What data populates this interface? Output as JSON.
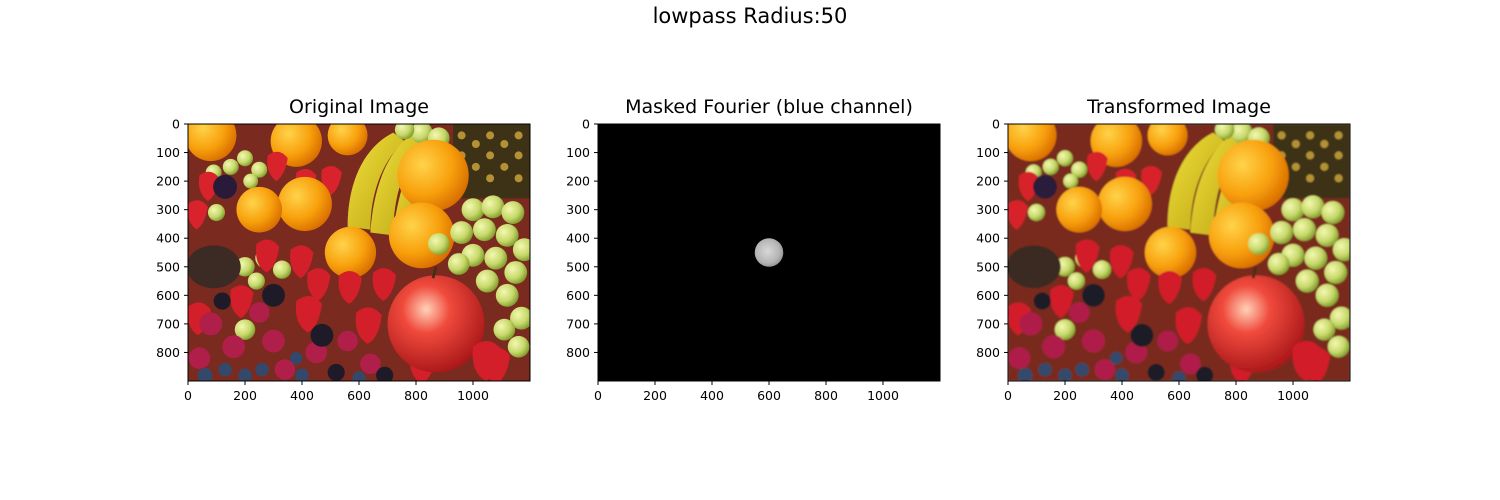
{
  "figure": {
    "suptitle": "lowpass Radius:50"
  },
  "chart_data": [
    {
      "type": "image",
      "title": "Original Image",
      "xlim": [
        0,
        1200
      ],
      "ylim": [
        900,
        0
      ],
      "xticks": [
        0,
        200,
        400,
        600,
        800,
        1000
      ],
      "yticks": [
        0,
        100,
        200,
        300,
        400,
        500,
        600,
        700,
        800
      ],
      "content": "fruit-photo"
    },
    {
      "type": "image",
      "title": "Masked Fourier (blue channel)",
      "xlim": [
        0,
        1200
      ],
      "ylim": [
        900,
        0
      ],
      "xticks": [
        0,
        200,
        400,
        600,
        800,
        1000
      ],
      "yticks": [
        0,
        100,
        200,
        300,
        400,
        500,
        600,
        700,
        800
      ],
      "content": "fourier-mask",
      "mask": {
        "center": [
          600,
          450
        ],
        "radius": 50
      }
    },
    {
      "type": "image",
      "title": "Transformed Image",
      "xlim": [
        0,
        1200
      ],
      "ylim": [
        900,
        0
      ],
      "xticks": [
        0,
        200,
        400,
        600,
        800,
        1000
      ],
      "yticks": [
        0,
        100,
        200,
        300,
        400,
        500,
        600,
        700,
        800
      ],
      "content": "fruit-photo-blurred"
    }
  ]
}
